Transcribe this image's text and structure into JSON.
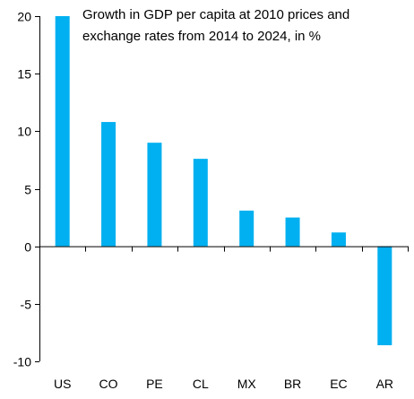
{
  "chart_data": {
    "type": "bar",
    "title_lines": [
      "Growth in GDP per capita at 2010 prices and",
      "exchange rates from 2014 to 2024, in %"
    ],
    "categories": [
      "US",
      "CO",
      "PE",
      "CL",
      "MX",
      "BR",
      "EC",
      "AR"
    ],
    "values": [
      20.0,
      10.8,
      9.0,
      7.6,
      3.1,
      2.5,
      1.2,
      -8.6
    ],
    "ylim": [
      -10,
      20
    ],
    "yticks": [
      -10,
      -5,
      0,
      5,
      10,
      15,
      20
    ],
    "ytick_labels": [
      "-10",
      "-5",
      "0",
      "5",
      "10",
      "15",
      "20"
    ],
    "xlabel": "",
    "ylabel": "",
    "grid": false,
    "legend": "none",
    "bar_color": "#00B0F0",
    "axis_color": "#000000"
  }
}
